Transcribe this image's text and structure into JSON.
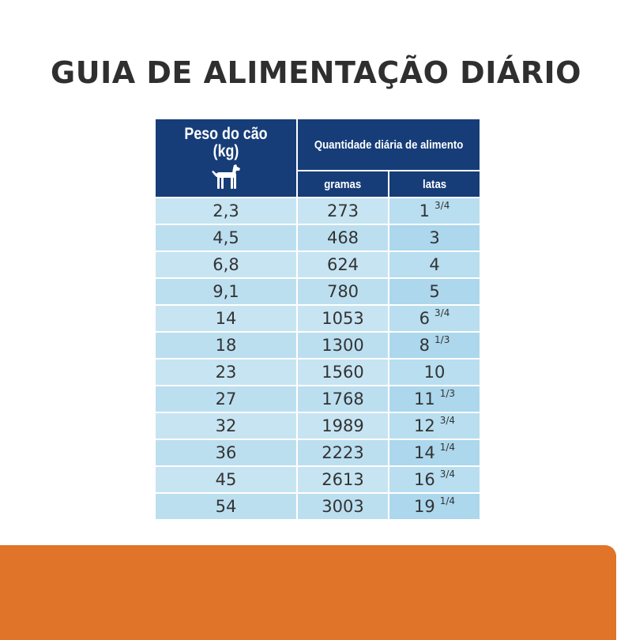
{
  "title": "GUIA DE ALIMENTAÇÃO DIÁRIO",
  "header": {
    "weight_line1": "Peso do cão",
    "weight_line2": "(kg)",
    "quantity": "Quantidade diária de alimento",
    "grams": "gramas",
    "cans": "latas",
    "icon": "dog-icon"
  },
  "rows": [
    {
      "weight": "2,3",
      "grams": "273",
      "cans": "1",
      "cans_frac": "3/4"
    },
    {
      "weight": "4,5",
      "grams": "468",
      "cans": "3",
      "cans_frac": ""
    },
    {
      "weight": "6,8",
      "grams": "624",
      "cans": "4",
      "cans_frac": ""
    },
    {
      "weight": "9,1",
      "grams": "780",
      "cans": "5",
      "cans_frac": ""
    },
    {
      "weight": "14",
      "grams": "1053",
      "cans": "6",
      "cans_frac": "3/4"
    },
    {
      "weight": "18",
      "grams": "1300",
      "cans": "8",
      "cans_frac": "1/3"
    },
    {
      "weight": "23",
      "grams": "1560",
      "cans": "10",
      "cans_frac": ""
    },
    {
      "weight": "27",
      "grams": "1768",
      "cans": "11",
      "cans_frac": "1/3"
    },
    {
      "weight": "32",
      "grams": "1989",
      "cans": "12",
      "cans_frac": "3/4"
    },
    {
      "weight": "36",
      "grams": "2223",
      "cans": "14",
      "cans_frac": "1/4"
    },
    {
      "weight": "45",
      "grams": "2613",
      "cans": "16",
      "cans_frac": "3/4"
    },
    {
      "weight": "54",
      "grams": "3003",
      "cans": "19",
      "cans_frac": "1/4"
    }
  ],
  "colors": {
    "header_bg": "#173d78",
    "cell_bg": "#c7e4f2",
    "cans_bg": "#b8def0",
    "footer_band": "#e07428",
    "title_text": "#2f2f2f"
  }
}
